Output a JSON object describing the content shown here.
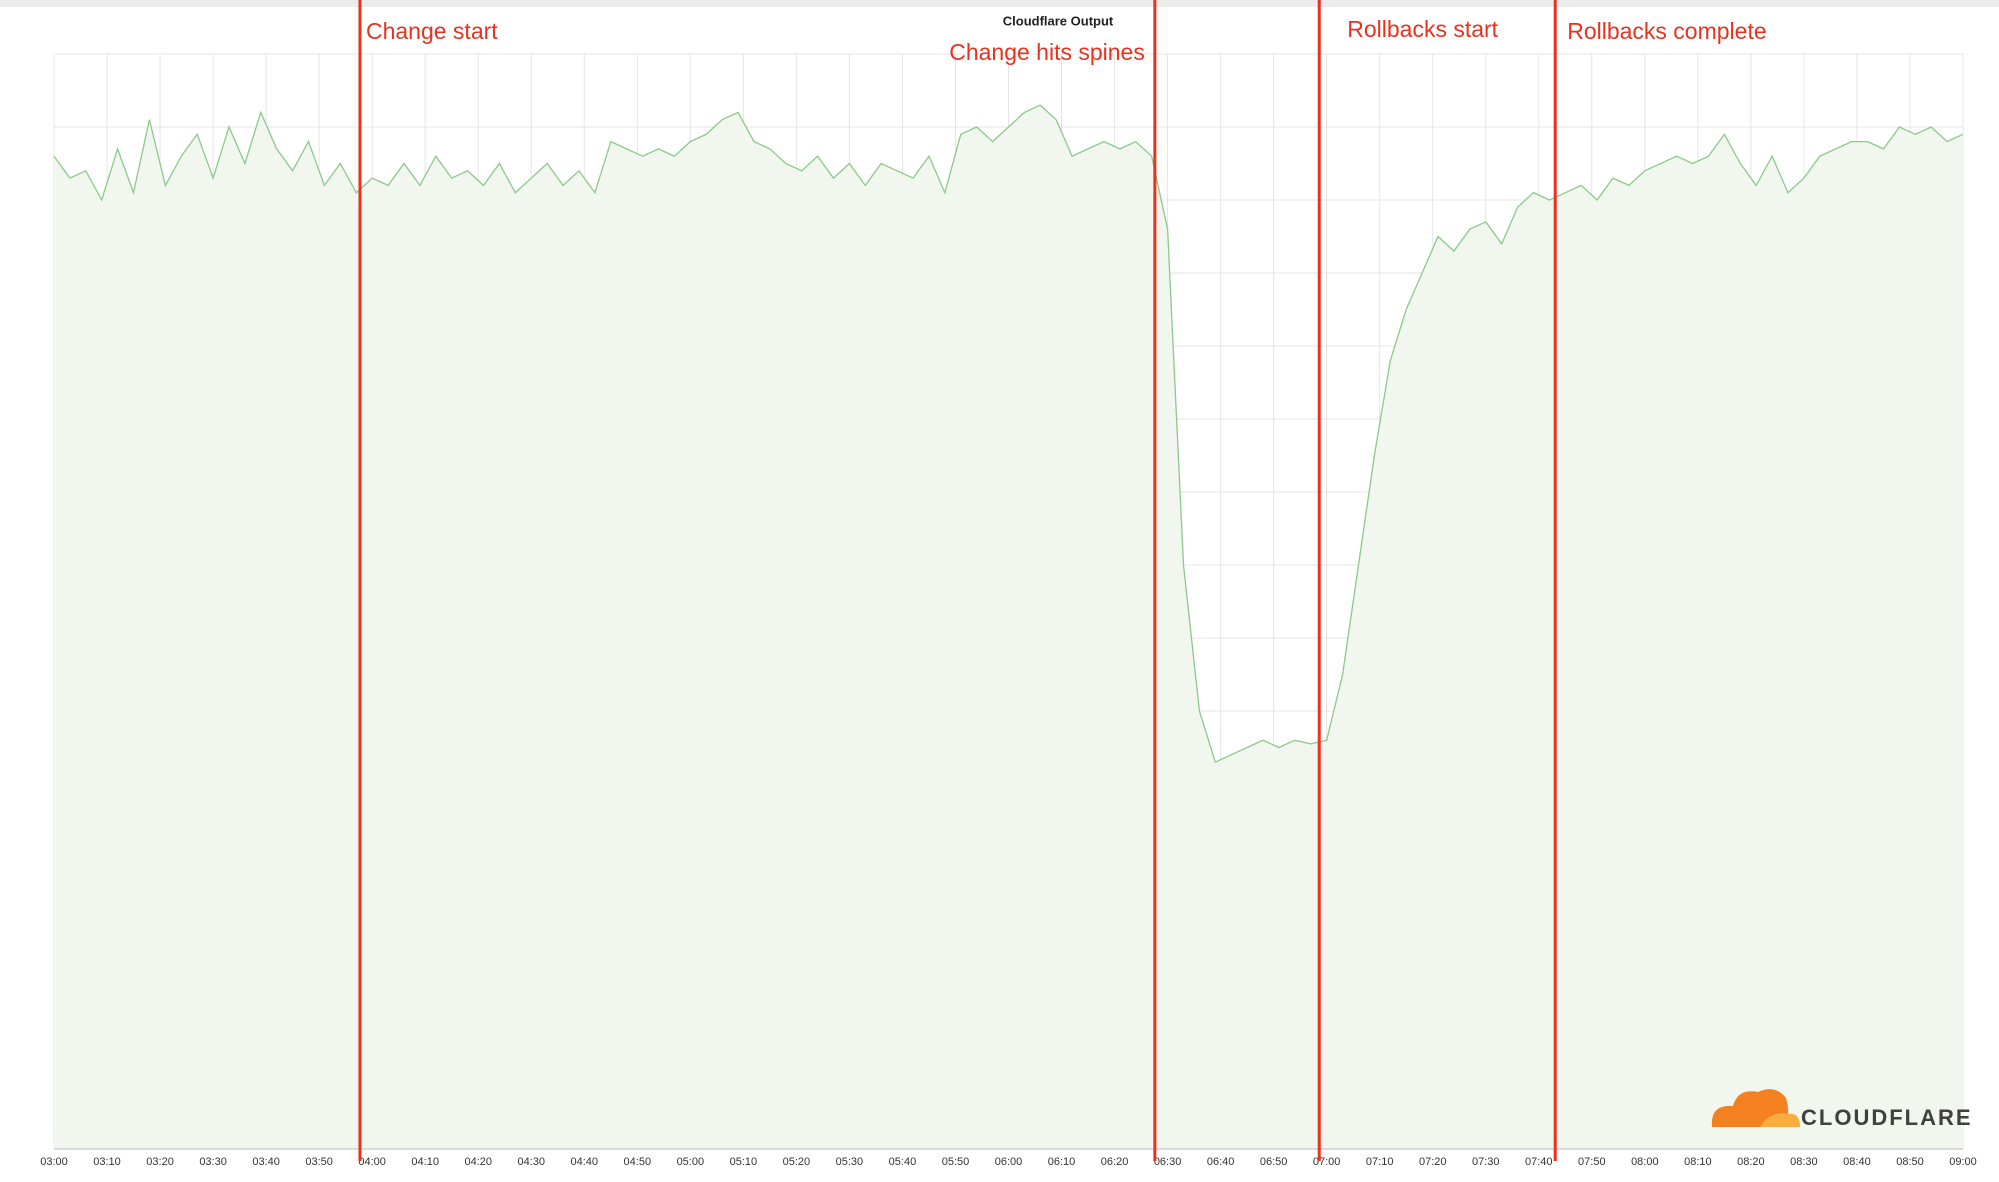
{
  "chart_data": {
    "type": "area",
    "title": "Cloudflare Output",
    "x": [
      180,
      183,
      186,
      189,
      192,
      195,
      198,
      201,
      204,
      207,
      210,
      213,
      216,
      219,
      222,
      225,
      228,
      231,
      234,
      237,
      240,
      243,
      246,
      249,
      252,
      255,
      258,
      261,
      264,
      267,
      270,
      273,
      276,
      279,
      282,
      285,
      288,
      291,
      294,
      297,
      300,
      303,
      306,
      309,
      312,
      315,
      318,
      321,
      324,
      327,
      330,
      333,
      336,
      339,
      342,
      345,
      348,
      351,
      354,
      357,
      360,
      363,
      366,
      369,
      372,
      375,
      378,
      381,
      384,
      387,
      390,
      393,
      396,
      399,
      402,
      405,
      408,
      411,
      414,
      417,
      420,
      423,
      426,
      429,
      432,
      435,
      438,
      441,
      444,
      447,
      450,
      453,
      456,
      459,
      462,
      465,
      468,
      471,
      474,
      477,
      480,
      483,
      486,
      489,
      492,
      495,
      498,
      501,
      504,
      507,
      510,
      513,
      516,
      519,
      522,
      525,
      528,
      531,
      534,
      537,
      540
    ],
    "series": [
      {
        "name": "Cloudflare Output",
        "color": "#8cc98a",
        "fill": "#f1f6ef",
        "values": [
          13.6,
          13.3,
          13.4,
          13.0,
          13.7,
          13.1,
          14.1,
          13.2,
          13.6,
          13.9,
          13.3,
          14.0,
          13.5,
          14.2,
          13.7,
          13.4,
          13.8,
          13.2,
          13.5,
          13.1,
          13.3,
          13.2,
          13.5,
          13.2,
          13.6,
          13.3,
          13.4,
          13.2,
          13.5,
          13.1,
          13.3,
          13.5,
          13.2,
          13.4,
          13.1,
          13.8,
          13.7,
          13.6,
          13.7,
          13.6,
          13.8,
          13.9,
          14.1,
          14.2,
          13.8,
          13.7,
          13.5,
          13.4,
          13.6,
          13.3,
          13.5,
          13.2,
          13.5,
          13.4,
          13.3,
          13.6,
          13.1,
          13.9,
          14.0,
          13.8,
          14.0,
          14.2,
          14.3,
          14.1,
          13.6,
          13.7,
          13.8,
          13.7,
          13.8,
          13.6,
          12.6,
          8.0,
          6.0,
          5.3,
          5.4,
          5.5,
          5.6,
          5.5,
          5.6,
          5.55,
          5.6,
          6.5,
          8.0,
          9.5,
          10.8,
          11.5,
          12.0,
          12.5,
          12.3,
          12.6,
          12.7,
          12.4,
          12.9,
          13.1,
          13.0,
          13.1,
          13.2,
          13.0,
          13.3,
          13.2,
          13.4,
          13.5,
          13.6,
          13.5,
          13.6,
          13.9,
          13.5,
          13.2,
          13.6,
          13.1,
          13.3,
          13.6,
          13.7,
          13.8,
          13.8,
          13.7,
          14.0,
          13.9,
          14.0,
          13.8,
          13.9
        ]
      }
    ],
    "xlim": [
      180,
      540
    ],
    "xticks": [
      {
        "value": 180,
        "label": "03:00"
      },
      {
        "value": 190,
        "label": "03:10"
      },
      {
        "value": 200,
        "label": "03:20"
      },
      {
        "value": 210,
        "label": "03:30"
      },
      {
        "value": 220,
        "label": "03:40"
      },
      {
        "value": 230,
        "label": "03:50"
      },
      {
        "value": 240,
        "label": "04:00"
      },
      {
        "value": 250,
        "label": "04:10"
      },
      {
        "value": 260,
        "label": "04:20"
      },
      {
        "value": 270,
        "label": "04:30"
      },
      {
        "value": 280,
        "label": "04:40"
      },
      {
        "value": 290,
        "label": "04:50"
      },
      {
        "value": 300,
        "label": "05:00"
      },
      {
        "value": 310,
        "label": "05:10"
      },
      {
        "value": 320,
        "label": "05:20"
      },
      {
        "value": 330,
        "label": "05:30"
      },
      {
        "value": 340,
        "label": "05:40"
      },
      {
        "value": 350,
        "label": "05:50"
      },
      {
        "value": 360,
        "label": "06:00"
      },
      {
        "value": 370,
        "label": "06:10"
      },
      {
        "value": 380,
        "label": "06:20"
      },
      {
        "value": 390,
        "label": "06:30"
      },
      {
        "value": 400,
        "label": "06:40"
      },
      {
        "value": 410,
        "label": "06:50"
      },
      {
        "value": 420,
        "label": "07:00"
      },
      {
        "value": 430,
        "label": "07:10"
      },
      {
        "value": 440,
        "label": "07:20"
      },
      {
        "value": 450,
        "label": "07:30"
      },
      {
        "value": 460,
        "label": "07:40"
      },
      {
        "value": 470,
        "label": "07:50"
      },
      {
        "value": 480,
        "label": "08:00"
      },
      {
        "value": 490,
        "label": "08:10"
      },
      {
        "value": 500,
        "label": "08:20"
      },
      {
        "value": 510,
        "label": "08:30"
      },
      {
        "value": 520,
        "label": "08:40"
      },
      {
        "value": 530,
        "label": "08:50"
      },
      {
        "value": 540,
        "label": "09:00"
      }
    ],
    "ylim": [
      0,
      15
    ],
    "yticks": [
      0,
      1,
      2,
      3,
      4,
      5,
      6,
      7,
      8,
      9,
      10,
      11,
      12,
      13,
      14,
      15
    ],
    "grid": true,
    "annotations": [
      {
        "text": "Change start",
        "x": 237.7,
        "color": "#e8321e"
      },
      {
        "text": "Change hits spines",
        "x": 387.6,
        "color": "#e8321e"
      },
      {
        "text": "Rollbacks start",
        "x": 418.6,
        "color": "#e8321e"
      },
      {
        "text": "Rollbacks complete",
        "x": 463.1,
        "color": "#e8321e"
      }
    ]
  },
  "logo": "CLOUDFLARE"
}
